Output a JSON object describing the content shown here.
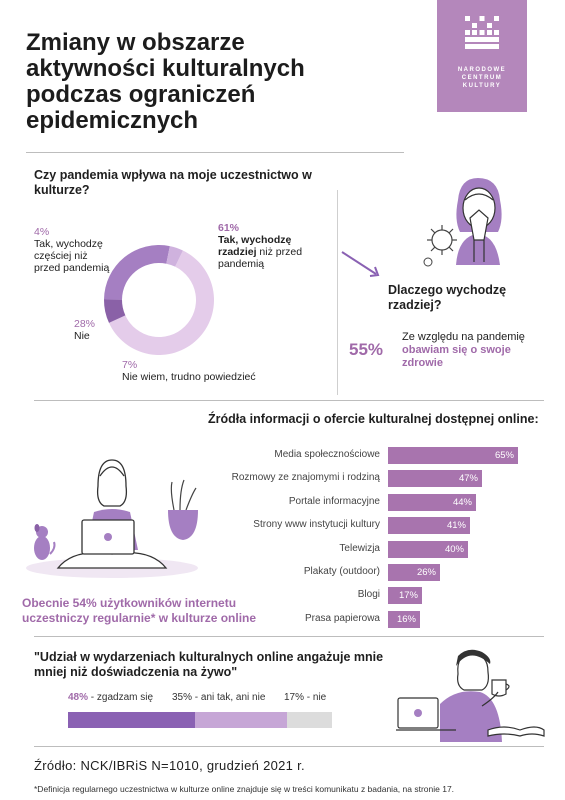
{
  "title": "Zmiany w obszarze aktywności kulturalnych podczas ograniczeń epidemicznych",
  "logo": {
    "line1": "NARODOWE",
    "line2": "CENTRUM",
    "line3": "KULTURY"
  },
  "section1": {
    "question": "Czy pandemia wpływa na moje uczestnictwo w kulturze?",
    "items": [
      {
        "pct": "61%",
        "label_bold": "Tak, wychodzę rzadziej",
        "label_rest": " niż przed pandemią",
        "value": 61,
        "color": "#e4ccea"
      },
      {
        "pct": "7%",
        "label": "Nie wiem, trudno powiedzieć",
        "value": 7,
        "color": "#8a61a7"
      },
      {
        "pct": "28%",
        "label": "Nie",
        "value": 28,
        "color": "#a57fc2"
      },
      {
        "pct": "4%",
        "label": "Tak, wychodzę częściej niż przed pandemią",
        "value": 4,
        "color": "#cfb2de"
      }
    ]
  },
  "reason": {
    "question": "Dlaczego wychodzę rzadziej?",
    "pct": "55%",
    "text_plain": "Ze względu na pandemię ",
    "text_bold": "obawiam się o swoje zdrowie"
  },
  "sources": {
    "title": "Źródła informacji o ofercie kulturalnej dostępnej online:",
    "bars": [
      {
        "label": "Media społecznościowe",
        "value": 65,
        "value_label": "65%"
      },
      {
        "label": "Rozmowy ze znajomymi i rodziną",
        "value": 47,
        "value_label": "47%"
      },
      {
        "label": "Portale informacyjne",
        "value": 44,
        "value_label": "44%"
      },
      {
        "label": "Strony www instytucji kultury",
        "value": 41,
        "value_label": "41%"
      },
      {
        "label": "Telewizja",
        "value": 40,
        "value_label": "40%"
      },
      {
        "label": "Plakaty (outdoor)",
        "value": 26,
        "value_label": "26%"
      },
      {
        "label": "Blogi",
        "value": 17,
        "value_label": "17%"
      },
      {
        "label": "Prasa papierowa",
        "value": 16,
        "value_label": "16%"
      }
    ],
    "online_note": "Obecnie 54% użytkowników internetu uczestniczy regularnie* w kulturze online"
  },
  "opinion": {
    "quote": "\"Udział w wydarzeniach kulturalnych online angażuje mnie mniej niż doświadczenia na żywo\"",
    "legend": [
      {
        "pct": "48%",
        "text": " - zgadzam się",
        "value": 48,
        "color": "#8a61b3"
      },
      {
        "pct": "35%",
        "text": " - ani tak, ani nie",
        "value": 35,
        "color": "#c6a6d6"
      },
      {
        "pct": "17%",
        "text": " - nie",
        "value": 17,
        "color": "#dcdcdc"
      }
    ]
  },
  "source": "Źródło: NCK/IBRiS N=1010, grudzień 2021 r.",
  "footnote": "*Definicja regularnego uczestnictwa w kulturze online znajduje się w treści komunikatu z badania, na stronie 17."
}
